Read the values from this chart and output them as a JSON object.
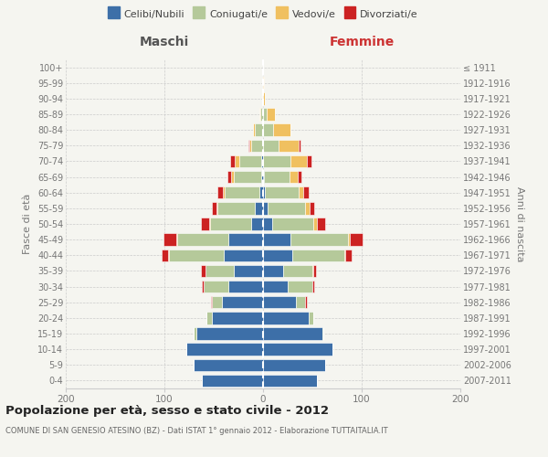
{
  "age_groups": [
    "0-4",
    "5-9",
    "10-14",
    "15-19",
    "20-24",
    "25-29",
    "30-34",
    "35-39",
    "40-44",
    "45-49",
    "50-54",
    "55-59",
    "60-64",
    "65-69",
    "70-74",
    "75-79",
    "80-84",
    "85-89",
    "90-94",
    "95-99",
    "100+"
  ],
  "birth_years": [
    "2007-2011",
    "2002-2006",
    "1997-2001",
    "1992-1996",
    "1987-1991",
    "1982-1986",
    "1977-1981",
    "1972-1976",
    "1967-1971",
    "1962-1966",
    "1957-1961",
    "1952-1956",
    "1947-1951",
    "1942-1946",
    "1937-1941",
    "1932-1936",
    "1927-1931",
    "1922-1926",
    "1917-1921",
    "1912-1916",
    "≤ 1911"
  ],
  "maschi": {
    "celibi": [
      62,
      70,
      78,
      68,
      52,
      42,
      35,
      30,
      40,
      35,
      12,
      8,
      4,
      2,
      2,
      0,
      0,
      0,
      0,
      0,
      0
    ],
    "coniugati": [
      0,
      0,
      0,
      2,
      5,
      10,
      25,
      28,
      55,
      52,
      42,
      38,
      35,
      28,
      22,
      12,
      8,
      3,
      1,
      0,
      0
    ],
    "vedovi": [
      0,
      0,
      0,
      0,
      0,
      0,
      0,
      0,
      1,
      1,
      1,
      1,
      2,
      2,
      5,
      2,
      2,
      1,
      0,
      0,
      0
    ],
    "divorziati": [
      0,
      0,
      0,
      0,
      0,
      1,
      2,
      5,
      7,
      13,
      8,
      5,
      5,
      4,
      4,
      1,
      0,
      0,
      0,
      0,
      0
    ]
  },
  "femmine": {
    "nubili": [
      55,
      63,
      70,
      60,
      46,
      33,
      25,
      20,
      30,
      28,
      9,
      5,
      2,
      1,
      0,
      0,
      0,
      0,
      0,
      0,
      0
    ],
    "coniugate": [
      0,
      0,
      0,
      1,
      5,
      10,
      25,
      30,
      52,
      58,
      42,
      38,
      34,
      26,
      28,
      16,
      10,
      4,
      0,
      0,
      0
    ],
    "vedove": [
      0,
      0,
      0,
      0,
      0,
      0,
      0,
      1,
      1,
      2,
      4,
      4,
      5,
      8,
      16,
      20,
      18,
      8,
      2,
      1,
      0
    ],
    "divorziate": [
      0,
      0,
      0,
      0,
      0,
      1,
      2,
      3,
      7,
      13,
      8,
      5,
      5,
      4,
      5,
      2,
      0,
      0,
      0,
      0,
      0
    ]
  },
  "colors": {
    "celibi": "#3d6fa8",
    "coniugati": "#b5c99a",
    "vedovi": "#f0c060",
    "divorziati": "#cc2222"
  },
  "xlim": 200,
  "title": "Popolazione per età, sesso e stato civile - 2012",
  "subtitle": "COMUNE DI SAN GENESIO ATESINO (BZ) - Dati ISTAT 1° gennaio 2012 - Elaborazione TUTTAITALIA.IT",
  "ylabel": "Fasce di età",
  "right_ylabel": "Anni di nascita",
  "legend_labels": [
    "Celibi/Nubili",
    "Coniugati/e",
    "Vedovi/e",
    "Divorziati/e"
  ],
  "bg_color": "#f5f5f0",
  "maschi_label": "Maschi",
  "femmine_label": "Femmine",
  "grid_color": "#cccccc",
  "tick_color": "#777777",
  "maschi_color": "#555555",
  "femmine_color": "#cc3333"
}
